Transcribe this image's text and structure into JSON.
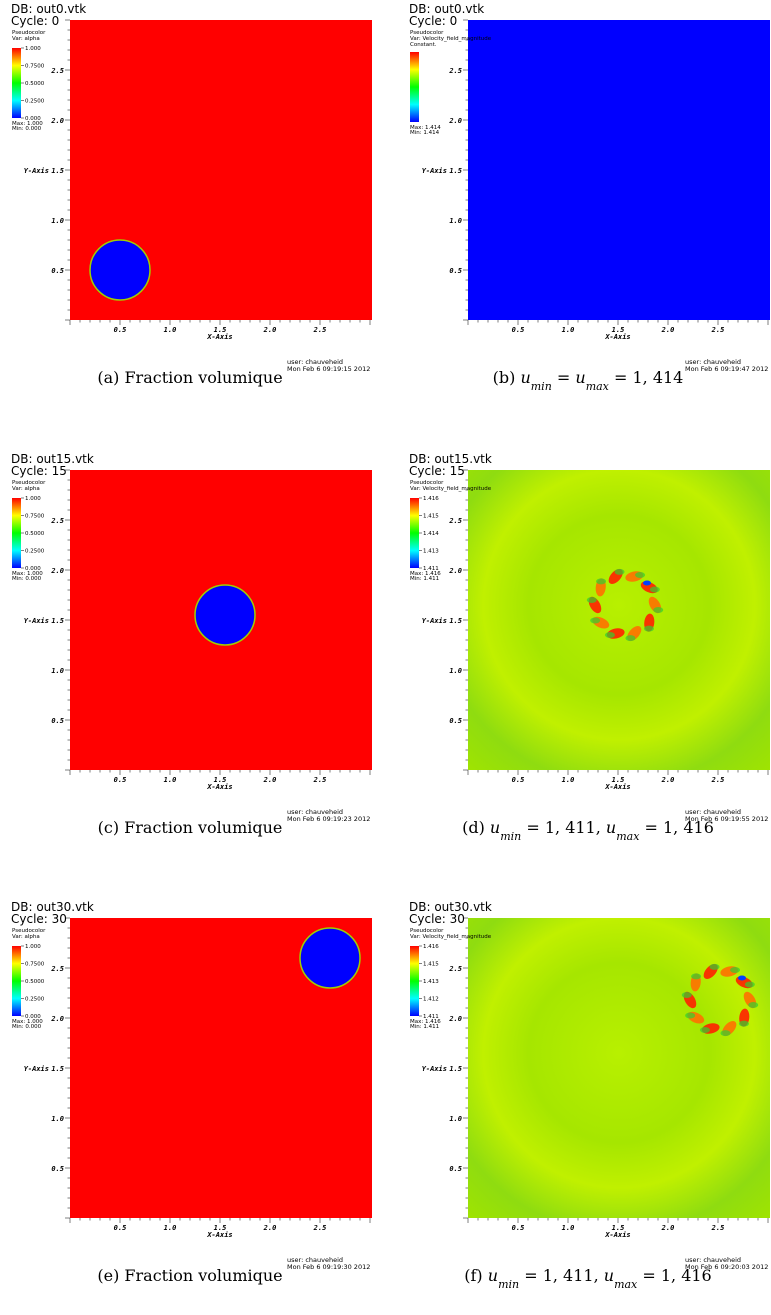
{
  "axes": {
    "x_label": "X-Axis",
    "y_label": "Y-Axis",
    "ticks": [
      "0.5",
      "1.0",
      "1.5",
      "2.0",
      "2.5"
    ]
  },
  "panels": [
    {
      "db": "DB: out0.vtk",
      "cycle": "Cycle: 0",
      "plot": "Pseudocolor",
      "var": "Var: alpha",
      "legend": [
        "1.000",
        "0.7500",
        "0.5000",
        "0.2500",
        "0.000"
      ],
      "max": "Max: 1.000",
      "min": "Min: 0.000",
      "user": "user: chauveheid",
      "date": "Mon Feb  6 09:19:15 2012",
      "caption": [
        {
          "t": "(a) Fraction volumique"
        }
      ]
    },
    {
      "db": "DB: out0.vtk",
      "cycle": "Cycle: 0",
      "plot": "Pseudocolor",
      "var": "Var: Velocity_field_magnitude",
      "note": "Constant.",
      "legend": [],
      "max": "Max: 1.414",
      "min": "Min: 1.414",
      "user": "user: chauveheid",
      "date": "Mon Feb  6 09:19:47 2012",
      "caption": [
        {
          "t": "(b) "
        },
        {
          "m": "u"
        },
        {
          "s": "min"
        },
        {
          "t": " = "
        },
        {
          "m": "u"
        },
        {
          "s": "max"
        },
        {
          "t": " = 1, 414"
        }
      ]
    },
    {
      "db": "DB: out15.vtk",
      "cycle": "Cycle: 15",
      "plot": "Pseudocolor",
      "var": "Var: alpha",
      "legend": [
        "1.000",
        "0.7500",
        "0.5000",
        "0.2500",
        "0.000"
      ],
      "max": "Max: 1.000",
      "min": "Min: 0.000",
      "user": "user: chauveheid",
      "date": "Mon Feb  6 09:19:23 2012",
      "caption": [
        {
          "t": "(c) Fraction volumique"
        }
      ]
    },
    {
      "db": "DB: out15.vtk",
      "cycle": "Cycle: 15",
      "plot": "Pseudocolor",
      "var": "Var: Velocity_field_magnitude",
      "legend": [
        "1.416",
        "1.415",
        "1.414",
        "1.413",
        "1.411"
      ],
      "max": "Max: 1.416",
      "min": "Min: 1.411",
      "user": "user: chauveheid",
      "date": "Mon Feb  6 09:19:55 2012",
      "caption": [
        {
          "t": "(d) "
        },
        {
          "m": "u"
        },
        {
          "s": "min"
        },
        {
          "t": " = 1, 411, "
        },
        {
          "m": "u"
        },
        {
          "s": "max"
        },
        {
          "t": " = 1, 416"
        }
      ]
    },
    {
      "db": "DB: out30.vtk",
      "cycle": "Cycle: 30",
      "plot": "Pseudocolor",
      "var": "Var: alpha",
      "legend": [
        "1.000",
        "0.7500",
        "0.5000",
        "0.2500",
        "0.000"
      ],
      "max": "Max: 1.000",
      "min": "Min: 0.000",
      "user": "user: chauveheid",
      "date": "Mon Feb  6 09:19:30 2012",
      "caption": [
        {
          "t": "(e) Fraction volumique"
        }
      ]
    },
    {
      "db": "DB: out30.vtk",
      "cycle": "Cycle: 30",
      "plot": "Pseudocolor",
      "var": "Var: Velocity_field_magnitude",
      "legend": [
        "1.416",
        "1.415",
        "1.413",
        "1.412",
        "1.411"
      ],
      "max": "Max: 1.416",
      "min": "Min: 1.411",
      "user": "user: chauveheid",
      "date": "Mon Feb  6 09:20:03 2012",
      "caption": [
        {
          "t": "(f) "
        },
        {
          "m": "u"
        },
        {
          "s": "min"
        },
        {
          "t": " = 1, 411, "
        },
        {
          "m": "u"
        },
        {
          "s": "max"
        },
        {
          "t": " = 1, 416"
        }
      ]
    }
  ]
}
